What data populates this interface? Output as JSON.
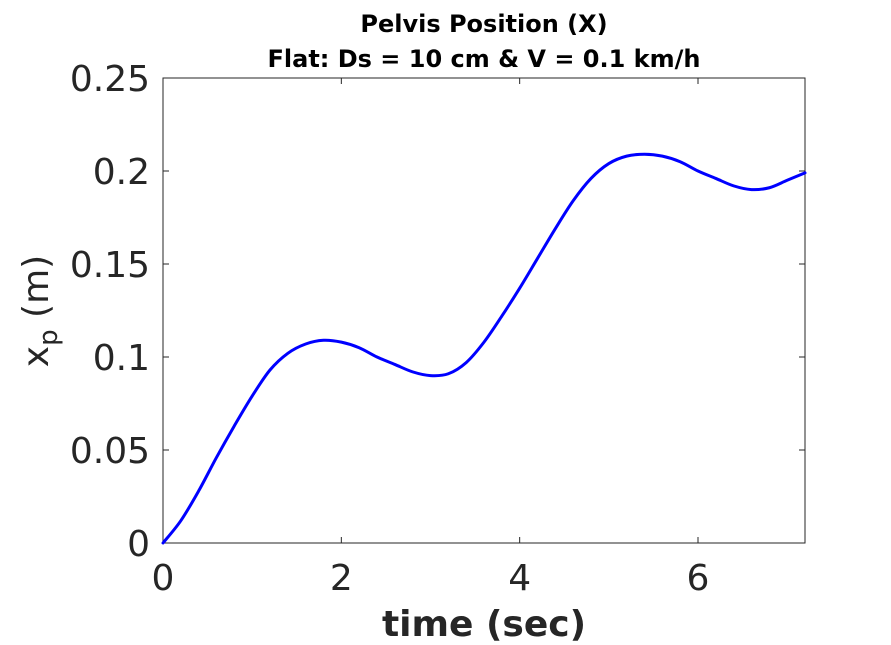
{
  "chart_data": {
    "type": "line",
    "title_line1": "Pelvis Position (X)",
    "title_line2": "Flat: Ds = 10 cm & V = 0.1 km/h",
    "xlabel": "time (sec)",
    "ylabel_main": "x",
    "ylabel_sub": "p",
    "ylabel_unit": " (m)",
    "xlim": [
      0,
      7.2
    ],
    "ylim": [
      0,
      0.25
    ],
    "xticks": [
      0,
      2,
      4,
      6
    ],
    "xtick_labels": [
      "0",
      "2",
      "4",
      "6"
    ],
    "yticks": [
      0,
      0.05,
      0.1,
      0.15,
      0.2,
      0.25
    ],
    "ytick_labels": [
      "0",
      "0.05",
      "0.1",
      "0.15",
      "0.2",
      "0.25"
    ],
    "grid": false,
    "series": [
      {
        "color": "#0000ff",
        "x": [
          0,
          0.2,
          0.4,
          0.6,
          0.8,
          1.0,
          1.2,
          1.4,
          1.6,
          1.8,
          2.0,
          2.2,
          2.4,
          2.6,
          2.8,
          3.0,
          3.2,
          3.4,
          3.6,
          3.8,
          4.0,
          4.2,
          4.4,
          4.6,
          4.8,
          5.0,
          5.2,
          5.4,
          5.6,
          5.8,
          6.0,
          6.2,
          6.4,
          6.6,
          6.8,
          7.0,
          7.2
        ],
        "y": [
          0,
          0.012,
          0.028,
          0.046,
          0.063,
          0.079,
          0.093,
          0.102,
          0.107,
          0.109,
          0.108,
          0.105,
          0.1,
          0.096,
          0.092,
          0.09,
          0.091,
          0.097,
          0.108,
          0.122,
          0.137,
          0.153,
          0.169,
          0.184,
          0.196,
          0.204,
          0.208,
          0.209,
          0.208,
          0.205,
          0.2,
          0.196,
          0.192,
          0.19,
          0.191,
          0.195,
          0.199
        ]
      }
    ]
  }
}
